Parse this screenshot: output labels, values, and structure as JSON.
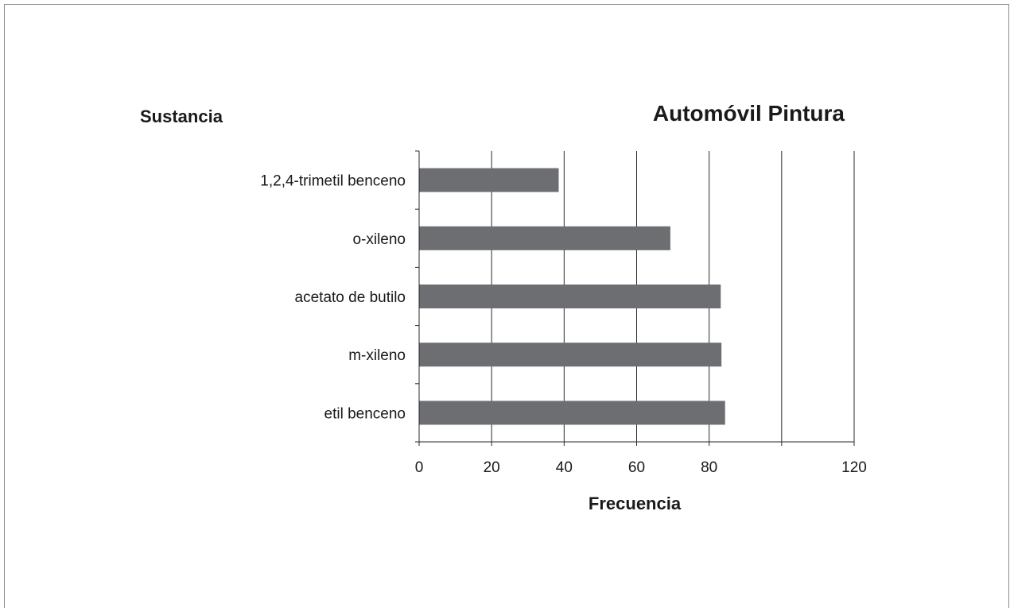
{
  "chart_data": {
    "type": "bar",
    "orientation": "horizontal",
    "title": "Automóvil Pintura",
    "xlabel": "Frecuencia",
    "ylabel": "Sustancia",
    "categories": [
      "1,2,4-trimetil benceno",
      "o-xileno",
      "acetato de butilo",
      "m-xileno",
      "etil benceno"
    ],
    "values": [
      38.5,
      69.3,
      83.2,
      83.4,
      84.4
    ],
    "xlim": [
      0,
      120
    ],
    "xticks": [
      0,
      20,
      40,
      60,
      80,
      120
    ],
    "xtick_labels": [
      "0",
      "20",
      "40",
      "60",
      "80",
      "120"
    ],
    "grid": "vertical",
    "legend": "none",
    "bar_color": "#6d6e71"
  }
}
